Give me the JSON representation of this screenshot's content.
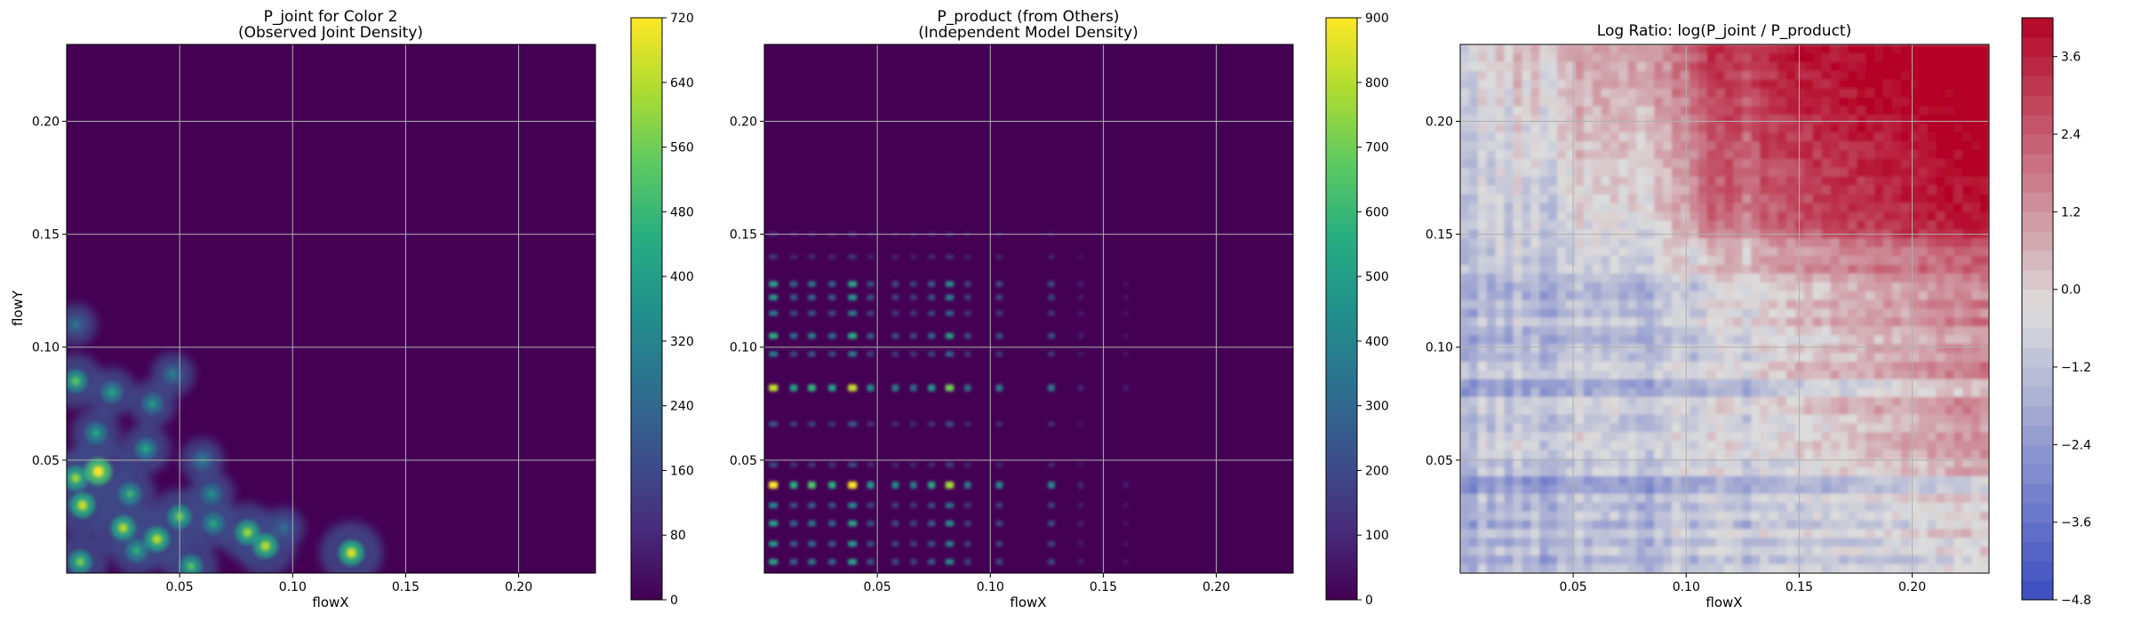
{
  "chart_data": [
    {
      "type": "heatmap",
      "title": "P_joint for Color 2",
      "subtitle": "(Observed Joint Density)",
      "xlabel": "flowX",
      "ylabel": "flowY",
      "xlim": [
        0.0,
        0.234
      ],
      "ylim": [
        0.0,
        0.234
      ],
      "xticks": [
        0.05,
        0.1,
        0.15,
        0.2
      ],
      "yticks": [
        0.05,
        0.1,
        0.15,
        0.2
      ],
      "xtick_labels": [
        "0.05",
        "0.10",
        "0.15",
        "0.20"
      ],
      "ytick_labels": [
        "0.05",
        "0.10",
        "0.15",
        "0.20"
      ],
      "grid": true,
      "colormap": "viridis",
      "colorbar": {
        "min": 0,
        "max": 720,
        "ticks": [
          0,
          80,
          160,
          240,
          320,
          400,
          480,
          560,
          640,
          720
        ],
        "tick_labels": [
          "0",
          "80",
          "160",
          "240",
          "320",
          "400",
          "480",
          "560",
          "640",
          "720"
        ]
      },
      "hotspots": [
        {
          "x": 0.004,
          "y": 0.11,
          "v": 120
        },
        {
          "x": 0.004,
          "y": 0.085,
          "v": 350
        },
        {
          "x": 0.004,
          "y": 0.042,
          "v": 420
        },
        {
          "x": 0.006,
          "y": 0.005,
          "v": 380
        },
        {
          "x": 0.007,
          "y": 0.03,
          "v": 480
        },
        {
          "x": 0.013,
          "y": 0.062,
          "v": 260
        },
        {
          "x": 0.014,
          "y": 0.045,
          "v": 600
        },
        {
          "x": 0.02,
          "y": 0.08,
          "v": 250
        },
        {
          "x": 0.025,
          "y": 0.02,
          "v": 450
        },
        {
          "x": 0.028,
          "y": 0.035,
          "v": 300
        },
        {
          "x": 0.031,
          "y": 0.01,
          "v": 280
        },
        {
          "x": 0.035,
          "y": 0.055,
          "v": 260
        },
        {
          "x": 0.038,
          "y": 0.075,
          "v": 220
        },
        {
          "x": 0.04,
          "y": 0.015,
          "v": 460
        },
        {
          "x": 0.047,
          "y": 0.088,
          "v": 150
        },
        {
          "x": 0.05,
          "y": 0.025,
          "v": 380
        },
        {
          "x": 0.055,
          "y": 0.003,
          "v": 340
        },
        {
          "x": 0.06,
          "y": 0.05,
          "v": 150
        },
        {
          "x": 0.064,
          "y": 0.035,
          "v": 200
        },
        {
          "x": 0.065,
          "y": 0.022,
          "v": 260
        },
        {
          "x": 0.08,
          "y": 0.018,
          "v": 430
        },
        {
          "x": 0.088,
          "y": 0.012,
          "v": 460
        },
        {
          "x": 0.096,
          "y": 0.02,
          "v": 110
        },
        {
          "x": 0.126,
          "y": 0.009,
          "v": 500
        }
      ]
    },
    {
      "type": "heatmap",
      "title": "P_product (from Others)",
      "subtitle": "(Independent Model Density)",
      "xlabel": "flowX",
      "ylabel": "",
      "xlim": [
        0.0,
        0.234
      ],
      "ylim": [
        0.0,
        0.234
      ],
      "xticks": [
        0.05,
        0.1,
        0.15,
        0.2
      ],
      "yticks": [
        0.05,
        0.1,
        0.15,
        0.2
      ],
      "xtick_labels": [
        "0.05",
        "0.10",
        "0.15",
        "0.20"
      ],
      "ytick_labels": [
        "0.05",
        "0.10",
        "0.15",
        "0.20"
      ],
      "grid": true,
      "colormap": "viridis",
      "colorbar": {
        "min": 0,
        "max": 900,
        "ticks": [
          0,
          100,
          200,
          300,
          400,
          500,
          600,
          700,
          800,
          900
        ],
        "tick_labels": [
          "0",
          "100",
          "200",
          "300",
          "400",
          "500",
          "600",
          "700",
          "800",
          "900"
        ]
      },
      "x_bands": [
        {
          "x": 0.004,
          "w": 1.0
        },
        {
          "x": 0.013,
          "w": 0.6
        },
        {
          "x": 0.021,
          "w": 0.7
        },
        {
          "x": 0.03,
          "w": 0.6
        },
        {
          "x": 0.039,
          "w": 1.0
        },
        {
          "x": 0.047,
          "w": 0.5
        },
        {
          "x": 0.058,
          "w": 0.45
        },
        {
          "x": 0.066,
          "w": 0.4
        },
        {
          "x": 0.074,
          "w": 0.55
        },
        {
          "x": 0.082,
          "w": 0.85
        },
        {
          "x": 0.09,
          "w": 0.4
        },
        {
          "x": 0.104,
          "w": 0.45
        },
        {
          "x": 0.127,
          "w": 0.45
        },
        {
          "x": 0.14,
          "w": 0.12
        },
        {
          "x": 0.16,
          "w": 0.06
        }
      ],
      "y_bands": [
        {
          "y": 0.005,
          "w": 0.55
        },
        {
          "y": 0.013,
          "w": 0.5
        },
        {
          "y": 0.022,
          "w": 0.55
        },
        {
          "y": 0.03,
          "w": 0.45
        },
        {
          "y": 0.039,
          "w": 1.0
        },
        {
          "y": 0.048,
          "w": 0.25
        },
        {
          "y": 0.066,
          "w": 0.3
        },
        {
          "y": 0.082,
          "w": 0.9
        },
        {
          "y": 0.097,
          "w": 0.4
        },
        {
          "y": 0.105,
          "w": 0.6
        },
        {
          "y": 0.115,
          "w": 0.4
        },
        {
          "y": 0.122,
          "w": 0.5
        },
        {
          "y": 0.128,
          "w": 0.55
        },
        {
          "y": 0.14,
          "w": 0.18
        },
        {
          "y": 0.15,
          "w": 0.12
        }
      ]
    },
    {
      "type": "heatmap",
      "title": "Log Ratio: log(P_joint / P_product)",
      "xlabel": "flowX",
      "ylabel": "",
      "xlim": [
        0.0,
        0.234
      ],
      "ylim": [
        0.0,
        0.234
      ],
      "xticks": [
        0.05,
        0.1,
        0.15,
        0.2
      ],
      "yticks": [
        0.05,
        0.1,
        0.15,
        0.2
      ],
      "xtick_labels": [
        "0.05",
        "0.10",
        "0.15",
        "0.20"
      ],
      "ytick_labels": [
        "0.05",
        "0.10",
        "0.15",
        "0.20"
      ],
      "grid": true,
      "colormap": "coolwarm",
      "colorbar": {
        "min": -4.8,
        "max": 4.2,
        "ticks": [
          -4.8,
          -3.6,
          -2.4,
          -1.2,
          0.0,
          1.2,
          2.4,
          3.6
        ],
        "tick_labels": [
          "−4.8",
          "−3.6",
          "−2.4",
          "−1.2",
          "0.0",
          "1.2",
          "2.4",
          "3.6"
        ]
      }
    }
  ]
}
